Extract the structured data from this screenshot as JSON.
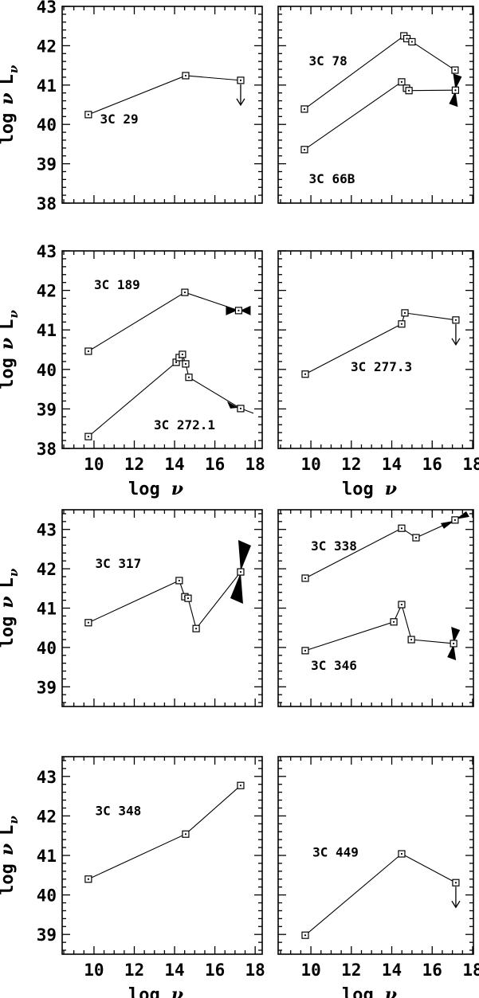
{
  "figure": {
    "background": "#ffffff",
    "ink": "#000000",
    "ylabel": {
      "log": "log",
      "nu": "ν",
      "L": "L",
      "sub_nu": "ν"
    },
    "xlabel": {
      "log": "log",
      "nu": "ν"
    }
  },
  "chart_data": [
    {
      "type": "line",
      "panel_id": "top-left",
      "row": 0,
      "col": 0,
      "xlim": [
        8.42,
        18.35
      ],
      "ylim": [
        38,
        43
      ],
      "xticks": [
        10,
        12,
        14,
        16,
        18
      ],
      "yticks": [
        38,
        39,
        40,
        41,
        42,
        43
      ],
      "x_minor_step": 0.5,
      "y_minor_step": 0.2,
      "show_x_tick_labels": false,
      "show_y_tick_labels": true,
      "show_xlabel": false,
      "show_ylabel": true,
      "series": [
        {
          "name": "3C 29",
          "label_xy": [
            10.3,
            40.15
          ],
          "marker": "open-square",
          "points": [
            [
              9.72,
              40.25
            ],
            [
              14.55,
              41.24
            ],
            [
              17.28,
              41.12
            ]
          ],
          "annotations": [
            {
              "type": "upper-limit-arrow",
              "at": [
                17.28,
                41.12
              ]
            }
          ]
        }
      ]
    },
    {
      "type": "line",
      "panel_id": "top-right",
      "row": 0,
      "col": 1,
      "xlim": [
        8.38,
        18.04
      ],
      "ylim": [
        38,
        43
      ],
      "xticks": [
        10,
        12,
        14,
        16,
        18
      ],
      "yticks": [
        38,
        39,
        40,
        41,
        42,
        43
      ],
      "x_minor_step": 0.5,
      "y_minor_step": 0.2,
      "show_x_tick_labels": false,
      "show_y_tick_labels": false,
      "show_xlabel": false,
      "show_ylabel": false,
      "series": [
        {
          "name": "3C 78",
          "label_xy": [
            9.9,
            41.62
          ],
          "marker": "open-square",
          "points": [
            [
              9.68,
              40.39
            ],
            [
              14.6,
              42.25
            ],
            [
              14.75,
              42.18
            ],
            [
              15.0,
              42.1
            ],
            [
              17.13,
              41.38
            ]
          ],
          "annotations": []
        },
        {
          "name": "3C 66B",
          "label_xy": [
            9.9,
            38.63
          ],
          "marker": "open-square",
          "points": [
            [
              9.68,
              39.36
            ],
            [
              14.49,
              41.08
            ],
            [
              14.73,
              40.92
            ],
            [
              14.85,
              40.86
            ],
            [
              17.15,
              40.87
            ]
          ],
          "annotations": [
            {
              "type": "bowtie-steep",
              "at": [
                17.15,
                40.87
              ]
            }
          ]
        }
      ]
    },
    {
      "type": "line",
      "panel_id": "middle-left",
      "row": 1,
      "col": 0,
      "xlim": [
        8.42,
        18.35
      ],
      "ylim": [
        38,
        43
      ],
      "xticks": [
        10,
        12,
        14,
        16,
        18
      ],
      "yticks": [
        38,
        39,
        40,
        41,
        42,
        43
      ],
      "x_minor_step": 0.5,
      "y_minor_step": 0.2,
      "show_x_tick_labels": true,
      "show_y_tick_labels": true,
      "show_xlabel": true,
      "show_ylabel": true,
      "series": [
        {
          "name": "3C 189",
          "label_xy": [
            10.0,
            42.15
          ],
          "marker": "open-square",
          "points": [
            [
              9.72,
              40.46
            ],
            [
              14.51,
              41.95
            ],
            [
              17.18,
              41.49
            ]
          ],
          "annotations": [
            {
              "type": "bowtie-horizontal",
              "at": [
                17.18,
                41.49
              ]
            }
          ]
        },
        {
          "name": "3C 272.1",
          "label_xy": [
            12.97,
            38.6
          ],
          "marker": "open-square",
          "points": [
            [
              9.72,
              38.3
            ],
            [
              14.08,
              40.18
            ],
            [
              14.23,
              40.3
            ],
            [
              14.39,
              40.38
            ],
            [
              14.55,
              40.14
            ],
            [
              14.71,
              39.8
            ],
            [
              17.28,
              39.01
            ]
          ],
          "annotations": [
            {
              "type": "slope-arrow",
              "at": [
                17.28,
                39.01
              ]
            }
          ]
        }
      ]
    },
    {
      "type": "line",
      "panel_id": "middle-right",
      "row": 1,
      "col": 1,
      "xlim": [
        8.38,
        18.04
      ],
      "ylim": [
        38,
        43
      ],
      "xticks": [
        10,
        12,
        14,
        16,
        18
      ],
      "yticks": [
        38,
        39,
        40,
        41,
        42,
        43
      ],
      "x_minor_step": 0.5,
      "y_minor_step": 0.2,
      "show_x_tick_labels": true,
      "show_y_tick_labels": false,
      "show_xlabel": true,
      "show_ylabel": false,
      "series": [
        {
          "name": "3C 277.3",
          "label_xy": [
            11.97,
            40.08
          ],
          "marker": "open-square",
          "points": [
            [
              9.72,
              39.88
            ],
            [
              14.49,
              41.15
            ],
            [
              14.65,
              41.43
            ],
            [
              17.17,
              41.25
            ]
          ],
          "annotations": [
            {
              "type": "upper-limit-arrow",
              "at": [
                17.17,
                41.25
              ]
            }
          ]
        }
      ]
    },
    {
      "type": "line",
      "panel_id": "lower-middle-left",
      "row": 2,
      "col": 0,
      "xlim": [
        8.42,
        18.35
      ],
      "ylim": [
        38.5,
        43.5
      ],
      "xticks": [
        10,
        12,
        14,
        16,
        18
      ],
      "yticks": [
        39,
        40,
        41,
        42,
        43
      ],
      "x_minor_step": 0.5,
      "y_minor_step": 0.2,
      "show_x_tick_labels": false,
      "show_y_tick_labels": true,
      "show_xlabel": false,
      "show_ylabel": true,
      "series": [
        {
          "name": "3C 317",
          "label_xy": [
            10.06,
            42.14
          ],
          "marker": "open-square",
          "points": [
            [
              9.72,
              40.63
            ],
            [
              14.23,
              41.7
            ],
            [
              14.51,
              41.29
            ],
            [
              14.67,
              41.25
            ],
            [
              15.07,
              40.48
            ],
            [
              17.28,
              41.92
            ]
          ],
          "annotations": [
            {
              "type": "bowtie-tall",
              "at": [
                17.28,
                41.92
              ]
            }
          ]
        }
      ]
    },
    {
      "type": "line",
      "panel_id": "lower-middle-right",
      "row": 2,
      "col": 1,
      "xlim": [
        8.38,
        18.04
      ],
      "ylim": [
        38.5,
        43.5
      ],
      "xticks": [
        10,
        12,
        14,
        16,
        18
      ],
      "yticks": [
        39,
        40,
        41,
        42,
        43
      ],
      "x_minor_step": 0.5,
      "y_minor_step": 0.2,
      "show_x_tick_labels": false,
      "show_y_tick_labels": false,
      "show_xlabel": false,
      "show_ylabel": false,
      "series": [
        {
          "name": "3C 338",
          "label_xy": [
            10.0,
            42.59
          ],
          "marker": "open-square",
          "points": [
            [
              9.72,
              41.76
            ],
            [
              14.49,
              43.03
            ],
            [
              15.2,
              42.79
            ],
            [
              17.13,
              43.24
            ]
          ],
          "annotations": [
            {
              "type": "bowtie-along",
              "at": [
                17.13,
                43.24
              ]
            }
          ]
        },
        {
          "name": "3C 346",
          "label_xy": [
            10.0,
            39.55
          ],
          "marker": "open-square",
          "points": [
            [
              9.72,
              39.92
            ],
            [
              14.1,
              40.65
            ],
            [
              14.49,
              41.09
            ],
            [
              14.97,
              40.2
            ],
            [
              17.06,
              40.1
            ]
          ],
          "annotations": [
            {
              "type": "bowtie-steep",
              "at": [
                17.06,
                40.1
              ]
            }
          ]
        }
      ]
    },
    {
      "type": "line",
      "panel_id": "bottom-left",
      "row": 3,
      "col": 0,
      "xlim": [
        8.42,
        18.35
      ],
      "ylim": [
        38.5,
        43.5
      ],
      "xticks": [
        10,
        12,
        14,
        16,
        18
      ],
      "yticks": [
        39,
        40,
        41,
        42,
        43
      ],
      "x_minor_step": 0.5,
      "y_minor_step": 0.2,
      "show_x_tick_labels": true,
      "show_y_tick_labels": true,
      "show_xlabel": true,
      "show_ylabel": true,
      "series": [
        {
          "name": "3C 348",
          "label_xy": [
            10.06,
            42.14
          ],
          "marker": "open-square",
          "points": [
            [
              9.72,
              40.4
            ],
            [
              14.55,
              41.54
            ],
            [
              17.28,
              42.77
            ]
          ],
          "annotations": []
        }
      ]
    },
    {
      "type": "line",
      "panel_id": "bottom-right",
      "row": 3,
      "col": 1,
      "xlim": [
        8.38,
        18.04
      ],
      "ylim": [
        38.5,
        43.5
      ],
      "xticks": [
        10,
        12,
        14,
        16,
        18
      ],
      "yticks": [
        39,
        40,
        41,
        42,
        43
      ],
      "x_minor_step": 0.5,
      "y_minor_step": 0.2,
      "show_x_tick_labels": true,
      "show_y_tick_labels": false,
      "show_xlabel": true,
      "show_ylabel": false,
      "series": [
        {
          "name": "3C 449",
          "label_xy": [
            10.08,
            41.09
          ],
          "marker": "open-square",
          "points": [
            [
              9.72,
              38.98
            ],
            [
              14.49,
              41.04
            ],
            [
              17.17,
              40.31
            ]
          ],
          "annotations": [
            {
              "type": "upper-limit-arrow",
              "at": [
                17.17,
                40.31
              ]
            }
          ]
        }
      ]
    }
  ]
}
